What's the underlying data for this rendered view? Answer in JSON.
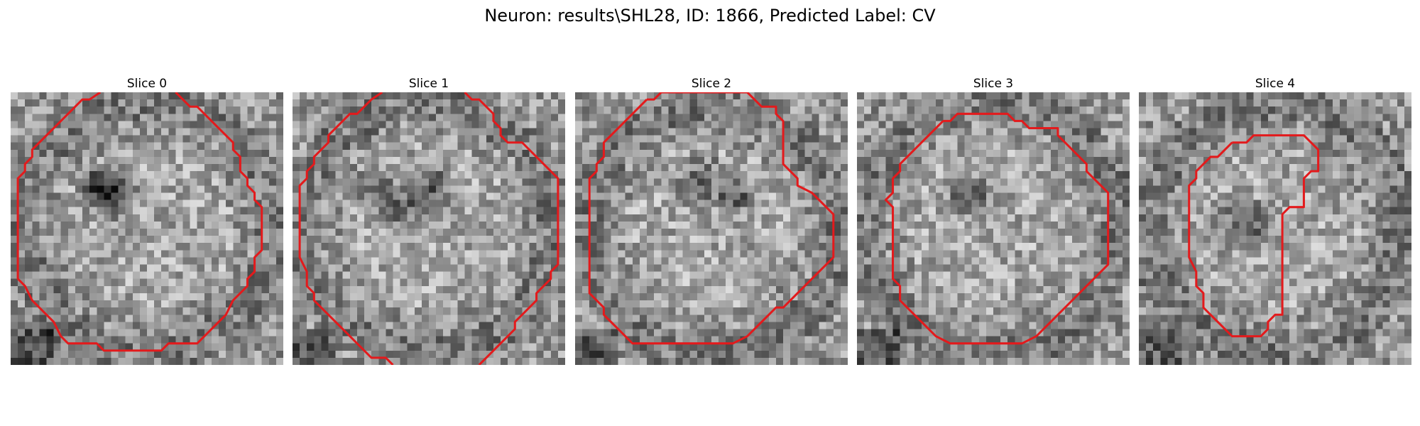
{
  "figure": {
    "title": "Neuron: results\\SHL28, ID: 1866, Predicted Label: CV"
  },
  "slices": [
    {
      "title": "Slice 0",
      "contour_color": "#e31a1c",
      "contour": [
        [
          12.5,
          0
        ],
        [
          11,
          1
        ],
        [
          10,
          1
        ],
        [
          9,
          2
        ],
        [
          8,
          3
        ],
        [
          7,
          4
        ],
        [
          6,
          5
        ],
        [
          5,
          6
        ],
        [
          4,
          7
        ],
        [
          3,
          8
        ],
        [
          3,
          9
        ],
        [
          2,
          10
        ],
        [
          2,
          11
        ],
        [
          1,
          12
        ],
        [
          1,
          14
        ],
        [
          1,
          16
        ],
        [
          1,
          18
        ],
        [
          1,
          20
        ],
        [
          1,
          22
        ],
        [
          1,
          24
        ],
        [
          1,
          26
        ],
        [
          2,
          27
        ],
        [
          3,
          29
        ],
        [
          4,
          30
        ],
        [
          5,
          31
        ],
        [
          6,
          32
        ],
        [
          7,
          34
        ],
        [
          8,
          35
        ],
        [
          10,
          35
        ],
        [
          12,
          35
        ],
        [
          13,
          36
        ],
        [
          15,
          36
        ],
        [
          17,
          36
        ],
        [
          19,
          36
        ],
        [
          21,
          36
        ],
        [
          22,
          35
        ],
        [
          24,
          35
        ],
        [
          26,
          35
        ],
        [
          27,
          34
        ],
        [
          28,
          33
        ],
        [
          29,
          32
        ],
        [
          30,
          31
        ],
        [
          31,
          29
        ],
        [
          32,
          28
        ],
        [
          33,
          27
        ],
        [
          33,
          26
        ],
        [
          34,
          25
        ],
        [
          34,
          23
        ],
        [
          35,
          22
        ],
        [
          35,
          20
        ],
        [
          35,
          18
        ],
        [
          35,
          16
        ],
        [
          34,
          15
        ],
        [
          34,
          14
        ],
        [
          33,
          13
        ],
        [
          33,
          12
        ],
        [
          32,
          11
        ],
        [
          32,
          9
        ],
        [
          31,
          8
        ],
        [
          31,
          7
        ],
        [
          30,
          6
        ],
        [
          29,
          5
        ],
        [
          28,
          4
        ],
        [
          27,
          3
        ],
        [
          26,
          2
        ],
        [
          25,
          2
        ],
        [
          24,
          1
        ],
        [
          23,
          0
        ]
      ]
    },
    {
      "title": "Slice 1",
      "contour_color": "#e31a1c",
      "contour": [
        [
          12.5,
          0
        ],
        [
          11,
          1
        ],
        [
          10,
          2
        ],
        [
          9,
          3
        ],
        [
          8,
          3
        ],
        [
          7,
          4
        ],
        [
          6,
          5
        ],
        [
          5,
          6
        ],
        [
          5,
          7
        ],
        [
          4,
          8
        ],
        [
          3,
          9
        ],
        [
          3,
          10
        ],
        [
          2,
          11
        ],
        [
          2,
          12
        ],
        [
          1,
          13
        ],
        [
          1,
          15
        ],
        [
          1,
          17
        ],
        [
          1,
          19
        ],
        [
          1,
          21
        ],
        [
          1,
          23
        ],
        [
          2,
          25
        ],
        [
          2,
          27
        ],
        [
          3,
          28
        ],
        [
          3,
          29
        ],
        [
          4,
          30
        ],
        [
          5,
          31
        ],
        [
          6,
          32
        ],
        [
          7,
          33
        ],
        [
          8,
          34
        ],
        [
          9,
          35
        ],
        [
          10,
          36
        ],
        [
          11,
          37
        ],
        [
          13,
          37
        ],
        [
          14,
          38
        ]
      ],
      "contour2": [
        [
          24,
          0
        ],
        [
          25,
          1
        ],
        [
          26,
          1
        ],
        [
          27,
          2
        ],
        [
          28,
          3
        ],
        [
          28,
          4
        ],
        [
          29,
          5
        ],
        [
          29,
          6
        ],
        [
          30,
          7
        ],
        [
          32,
          7
        ],
        [
          33,
          8
        ],
        [
          34,
          9
        ],
        [
          35,
          10
        ],
        [
          36,
          11
        ],
        [
          37,
          12
        ],
        [
          37,
          14
        ],
        [
          37,
          16
        ],
        [
          37,
          18
        ],
        [
          37,
          20
        ],
        [
          37,
          22
        ],
        [
          37,
          24
        ],
        [
          36,
          25
        ],
        [
          36,
          26
        ],
        [
          35,
          27
        ],
        [
          34,
          28
        ],
        [
          34,
          29
        ],
        [
          33,
          30
        ],
        [
          32,
          31
        ],
        [
          31,
          32
        ],
        [
          31,
          33
        ],
        [
          30,
          34
        ],
        [
          29,
          35
        ],
        [
          28,
          36
        ],
        [
          27,
          37
        ],
        [
          26,
          38
        ]
      ]
    },
    {
      "title": "Slice 2",
      "contour_color": "#e31a1c",
      "contour": [
        [
          10,
          1
        ],
        [
          9,
          2
        ],
        [
          8,
          3
        ],
        [
          7,
          4
        ],
        [
          6,
          5
        ],
        [
          5,
          6
        ],
        [
          4,
          7
        ],
        [
          4,
          9
        ],
        [
          3,
          10
        ],
        [
          3,
          11
        ],
        [
          2,
          12
        ],
        [
          2,
          14
        ],
        [
          2,
          16
        ],
        [
          2,
          18
        ],
        [
          2,
          20
        ],
        [
          2,
          22
        ],
        [
          2,
          24
        ],
        [
          2,
          26
        ],
        [
          2,
          28
        ],
        [
          3,
          29
        ],
        [
          4,
          30
        ],
        [
          4,
          31
        ],
        [
          5,
          32
        ],
        [
          6,
          33
        ],
        [
          7,
          34
        ],
        [
          8,
          35
        ],
        [
          10,
          35
        ],
        [
          12,
          35
        ],
        [
          14,
          35
        ],
        [
          16,
          35
        ],
        [
          18,
          35
        ],
        [
          20,
          35
        ],
        [
          22,
          35
        ],
        [
          24,
          34
        ],
        [
          25,
          33
        ],
        [
          26,
          32
        ],
        [
          27,
          31
        ],
        [
          28,
          30
        ],
        [
          29,
          30
        ],
        [
          30,
          29
        ],
        [
          31,
          28
        ],
        [
          32,
          27
        ],
        [
          33,
          26
        ],
        [
          34,
          25
        ],
        [
          35,
          24
        ],
        [
          36,
          23
        ],
        [
          36,
          21
        ],
        [
          36,
          19
        ],
        [
          36,
          17
        ],
        [
          35,
          16
        ],
        [
          34,
          15
        ],
        [
          33,
          14
        ],
        [
          31,
          13
        ],
        [
          31,
          12
        ],
        [
          30,
          11
        ],
        [
          29,
          10
        ],
        [
          29,
          8
        ],
        [
          29,
          6
        ],
        [
          29,
          4
        ],
        [
          28,
          3
        ],
        [
          28,
          2
        ],
        [
          26,
          2
        ],
        [
          25,
          1
        ],
        [
          24,
          0
        ],
        [
          22,
          0
        ],
        [
          20,
          0
        ],
        [
          18,
          0
        ],
        [
          16,
          0
        ],
        [
          14,
          0
        ],
        [
          12,
          0
        ],
        [
          11,
          1
        ],
        [
          10,
          1
        ]
      ]
    },
    {
      "title": "Slice 3",
      "contour_color": "#e31a1c",
      "contour": [
        [
          12,
          4
        ],
        [
          11,
          5
        ],
        [
          10,
          6
        ],
        [
          9,
          7
        ],
        [
          8,
          8
        ],
        [
          7,
          9
        ],
        [
          6,
          10
        ],
        [
          6,
          11
        ],
        [
          5,
          12
        ],
        [
          5,
          14
        ],
        [
          4,
          15
        ],
        [
          5,
          16
        ],
        [
          5,
          18
        ],
        [
          5,
          20
        ],
        [
          5,
          22
        ],
        [
          5,
          24
        ],
        [
          5,
          26
        ],
        [
          6,
          27
        ],
        [
          6,
          29
        ],
        [
          7,
          30
        ],
        [
          8,
          31
        ],
        [
          9,
          32
        ],
        [
          10,
          33
        ],
        [
          11,
          34
        ],
        [
          13,
          35
        ],
        [
          15,
          35
        ],
        [
          17,
          35
        ],
        [
          19,
          35
        ],
        [
          21,
          35
        ],
        [
          23,
          35
        ],
        [
          25,
          34
        ],
        [
          26,
          33
        ],
        [
          27,
          32
        ],
        [
          28,
          31
        ],
        [
          29,
          30
        ],
        [
          30,
          29
        ],
        [
          31,
          28
        ],
        [
          32,
          27
        ],
        [
          35,
          24
        ],
        [
          35,
          22
        ],
        [
          35,
          20
        ],
        [
          35,
          18
        ],
        [
          35,
          16
        ],
        [
          35,
          14
        ],
        [
          34,
          13
        ],
        [
          33,
          12
        ],
        [
          32,
          11
        ],
        [
          32,
          10
        ],
        [
          31,
          9
        ],
        [
          30,
          8
        ],
        [
          29,
          7
        ],
        [
          28,
          6
        ],
        [
          28,
          5
        ],
        [
          26,
          5
        ],
        [
          24,
          5
        ],
        [
          23,
          4
        ],
        [
          22,
          4
        ],
        [
          21,
          3
        ],
        [
          19,
          3
        ],
        [
          17,
          3
        ],
        [
          15,
          3
        ],
        [
          14,
          3
        ],
        [
          13,
          4
        ],
        [
          12,
          4
        ]
      ]
    },
    {
      "title": "Slice 4",
      "contour_color": "#e31a1c",
      "contour": [
        [
          13,
          7
        ],
        [
          12,
          8
        ],
        [
          11,
          9
        ],
        [
          10,
          9
        ],
        [
          9,
          10
        ],
        [
          8,
          11
        ],
        [
          8,
          12
        ],
        [
          7,
          13
        ],
        [
          7,
          15
        ],
        [
          7,
          17
        ],
        [
          7,
          19
        ],
        [
          7,
          21
        ],
        [
          7,
          23
        ],
        [
          8,
          25
        ],
        [
          8,
          27
        ],
        [
          9,
          28
        ],
        [
          9,
          30
        ],
        [
          10,
          31
        ],
        [
          11,
          32
        ],
        [
          12,
          33
        ],
        [
          13,
          34
        ],
        [
          15,
          34
        ],
        [
          17,
          34
        ],
        [
          18,
          33
        ],
        [
          18,
          32
        ],
        [
          19,
          31
        ],
        [
          20,
          31
        ],
        [
          20,
          29
        ],
        [
          20,
          27
        ],
        [
          20,
          25
        ],
        [
          20,
          23
        ],
        [
          20,
          21
        ],
        [
          20,
          19
        ],
        [
          20,
          17
        ],
        [
          21,
          16
        ],
        [
          23,
          16
        ],
        [
          23,
          14
        ],
        [
          23,
          12
        ],
        [
          24,
          11
        ],
        [
          25,
          11
        ],
        [
          25,
          9
        ],
        [
          25,
          8
        ],
        [
          24,
          7
        ],
        [
          23,
          6
        ],
        [
          22,
          6
        ],
        [
          20,
          6
        ],
        [
          18,
          6
        ],
        [
          16,
          6
        ],
        [
          15,
          7
        ],
        [
          14,
          7
        ],
        [
          13,
          7
        ]
      ]
    }
  ]
}
